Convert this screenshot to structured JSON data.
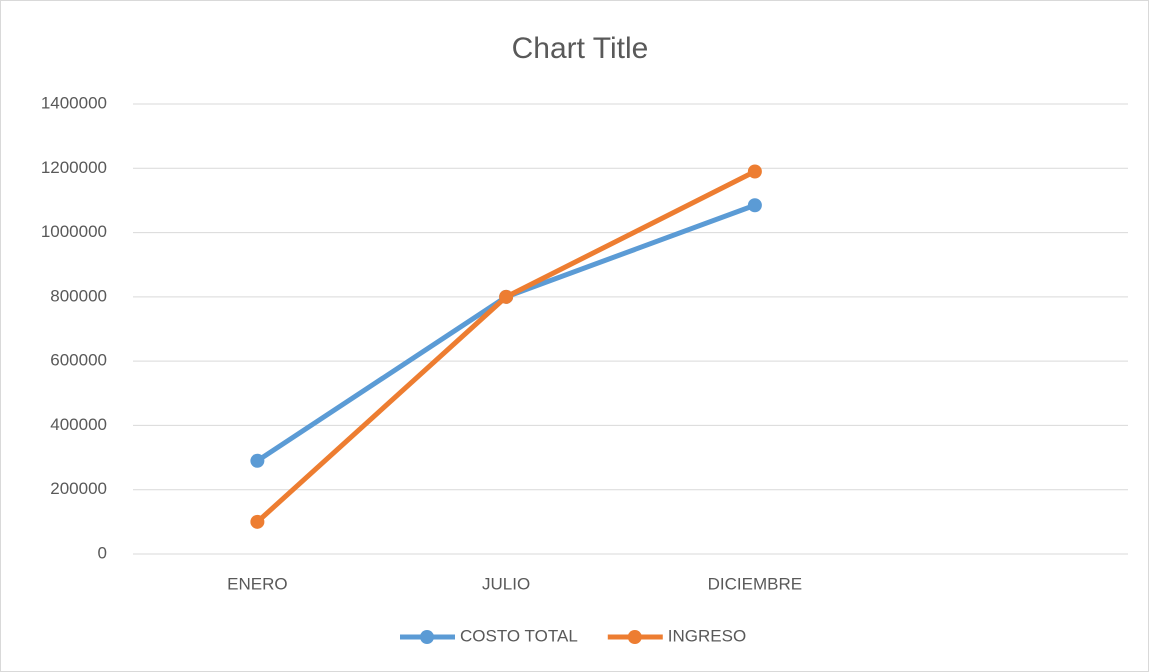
{
  "chart_data": {
    "type": "line",
    "title": "Chart Title",
    "categories": [
      "ENERO",
      "JULIO",
      "DICIEMBRE",
      null
    ],
    "series": [
      {
        "name": "COSTO TOTAL",
        "color": "#5b9bd5",
        "values": [
          290000,
          800000,
          1085000,
          null
        ]
      },
      {
        "name": "INGRESO",
        "color": "#ed7d31",
        "values": [
          100000,
          800000,
          1190000,
          null
        ]
      }
    ],
    "ylim": [
      0,
      1400000
    ],
    "yticks": [
      0,
      200000,
      400000,
      600000,
      800000,
      1000000,
      1200000,
      1400000
    ],
    "grid": true,
    "legend": "bottom"
  }
}
